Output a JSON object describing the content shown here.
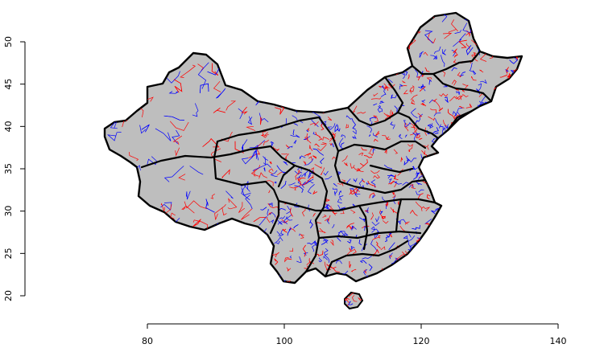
{
  "chart_data": {
    "type": "map",
    "x_ticks": [
      "80",
      "100",
      "120",
      "140"
    ],
    "y_ticks": [
      "20",
      "25",
      "30",
      "35",
      "40",
      "45",
      "50"
    ],
    "xlim": [
      80,
      140
    ],
    "ylim": [
      20,
      50
    ],
    "colors": {
      "land": "#bebebe",
      "outline": "#000000",
      "red_lines": "#ff0000",
      "blue_lines": "#0000ff"
    }
  }
}
